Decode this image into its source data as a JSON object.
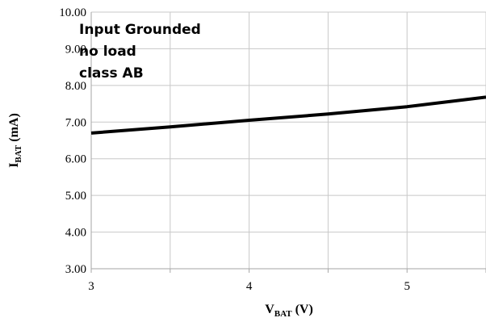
{
  "chart_data": {
    "type": "line",
    "annotations": [
      "Input Grounded",
      "no load",
      "class AB"
    ],
    "xlabel": {
      "main": "V",
      "sub": "BAT",
      "unit": " (V)"
    },
    "ylabel": {
      "main": "I",
      "sub": "BAT",
      "unit": " (mA)"
    },
    "xlim": [
      3,
      5.5
    ],
    "ylim": [
      3,
      10
    ],
    "xticks": [
      3,
      3.5,
      4,
      4.5,
      5,
      5.5
    ],
    "xtick_labels": [
      "3",
      "",
      "4",
      "",
      "5",
      ""
    ],
    "yticks": [
      3,
      4,
      5,
      6,
      7,
      8,
      9,
      10
    ],
    "ytick_labels": [
      "3.00",
      "4.00",
      "5.00",
      "6.00",
      "7.00",
      "8.00",
      "9.00",
      "10.00"
    ],
    "grid": true,
    "series": [
      {
        "color": "#000000",
        "x": [
          3.0,
          3.5,
          4.0,
          4.5,
          5.0,
          5.5
        ],
        "y": [
          6.7,
          6.87,
          7.05,
          7.22,
          7.42,
          7.68
        ]
      }
    ]
  }
}
